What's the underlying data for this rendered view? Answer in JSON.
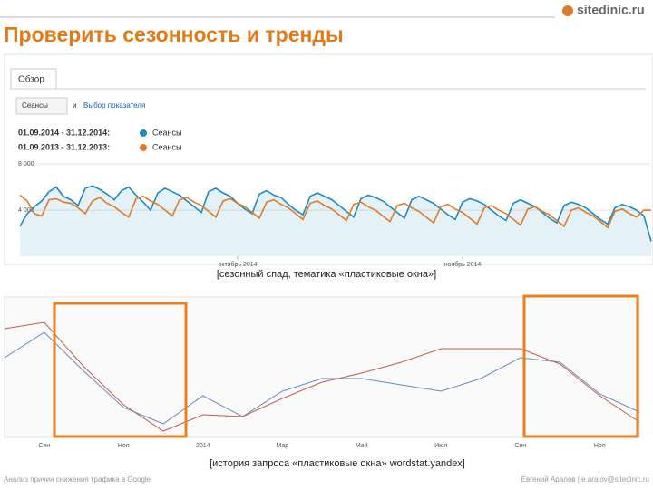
{
  "header": {
    "title": "Проверить сезонность и тренды",
    "logo": "sitedinic.ru"
  },
  "chart_data": [
    {
      "type": "line",
      "tab": "Обзор",
      "metric": "Сеансы",
      "and": "и",
      "picker": "Выбор показателя",
      "ylim": [
        0,
        8250
      ],
      "yticks": [
        {
          "value": 4000,
          "label": "4 000"
        },
        {
          "value": 8000,
          "label": "8 000"
        }
      ],
      "xlim": [
        0,
        87
      ],
      "xticks": [
        {
          "value": 30,
          "label": "октябрь 2014"
        },
        {
          "value": 61,
          "label": "ноябрь 2014"
        }
      ],
      "series": [
        {
          "name": "Сеансы",
          "period": "01.09.2014 - 31.12.2014:",
          "color": "#1f8ac0",
          "area": true,
          "values": [
            2600,
            3700,
            4300,
            4800,
            5600,
            6000,
            5200,
            4900,
            4400,
            5900,
            6100,
            5800,
            5400,
            4900,
            5700,
            6000,
            5300,
            4700,
            4000,
            5500,
            5900,
            5600,
            5300,
            4800,
            4300,
            3800,
            5600,
            5900,
            5500,
            5200,
            4600,
            4100,
            3700,
            5400,
            5700,
            5300,
            5100,
            4500,
            4000,
            3600,
            5200,
            5500,
            5200,
            4900,
            4400,
            3900,
            3400,
            5000,
            5300,
            5100,
            4800,
            4300,
            3800,
            3300,
            4900,
            5200,
            4900,
            4600,
            4100,
            3600,
            3200,
            4700,
            5000,
            4800,
            4500,
            4000,
            3500,
            3100,
            4600,
            4900,
            4600,
            4300,
            3800,
            3300,
            2900,
            4400,
            4700,
            4500,
            4200,
            3700,
            3200,
            2800,
            4200,
            4500,
            4300,
            4000,
            3500,
            1300
          ]
        },
        {
          "name": "Сеансы",
          "period": "01.09.2013 - 31.12.2013:",
          "color": "#e07b28",
          "area": false,
          "values": [
            5300,
            4800,
            3700,
            3500,
            4900,
            5000,
            4700,
            4600,
            4200,
            3700,
            4800,
            5100,
            4600,
            4300,
            3800,
            3400,
            5000,
            5200,
            4800,
            4500,
            4000,
            3500,
            4900,
            5100,
            4700,
            4400,
            3900,
            3400,
            4800,
            5000,
            4600,
            4300,
            3800,
            3300,
            4700,
            4900,
            4500,
            4200,
            3700,
            3200,
            4600,
            4800,
            4400,
            4100,
            3600,
            3100,
            4500,
            4700,
            4300,
            4000,
            3500,
            3000,
            4400,
            4600,
            4200,
            3900,
            3400,
            2900,
            4300,
            4500,
            4100,
            3800,
            3300,
            2800,
            4200,
            4400,
            4000,
            3700,
            3200,
            2700,
            4100,
            4300,
            3900,
            3600,
            3100,
            2600,
            4000,
            4200,
            3800,
            3500,
            3000,
            2500,
            3900,
            4100,
            3700,
            3400,
            4000,
            4000
          ]
        }
      ]
    },
    {
      "type": "line",
      "ylim": [
        0,
        135
      ],
      "categories": [
        null,
        "Сен",
        null,
        "Ноя",
        null,
        "2014",
        null,
        "Мар",
        null,
        "Май",
        null,
        "Июл",
        null,
        "Сен",
        null,
        "Ноя",
        null
      ],
      "series": [
        {
          "color": "#6a8cc0",
          "values": [
            85,
            113,
            70,
            30,
            12,
            43,
            20,
            48,
            62,
            62,
            55,
            48,
            62,
            85,
            80,
            45,
            25
          ]
        },
        {
          "color": "#c0604a",
          "values": [
            117,
            124,
            75,
            33,
            4,
            22,
            20,
            40,
            58,
            68,
            80,
            95,
            95,
            95,
            78,
            43,
            14
          ]
        }
      ]
    }
  ],
  "captions": [
    "[сезонный спад, тематика «пластиковые окна»]",
    "[история запроса «пластиковые окна» wordstat.yandex]"
  ],
  "footer": {
    "left": "Анализ причин снижения трафика в Google",
    "right": "Евгений Аралов | e.aralov@sitedinic.ru"
  }
}
